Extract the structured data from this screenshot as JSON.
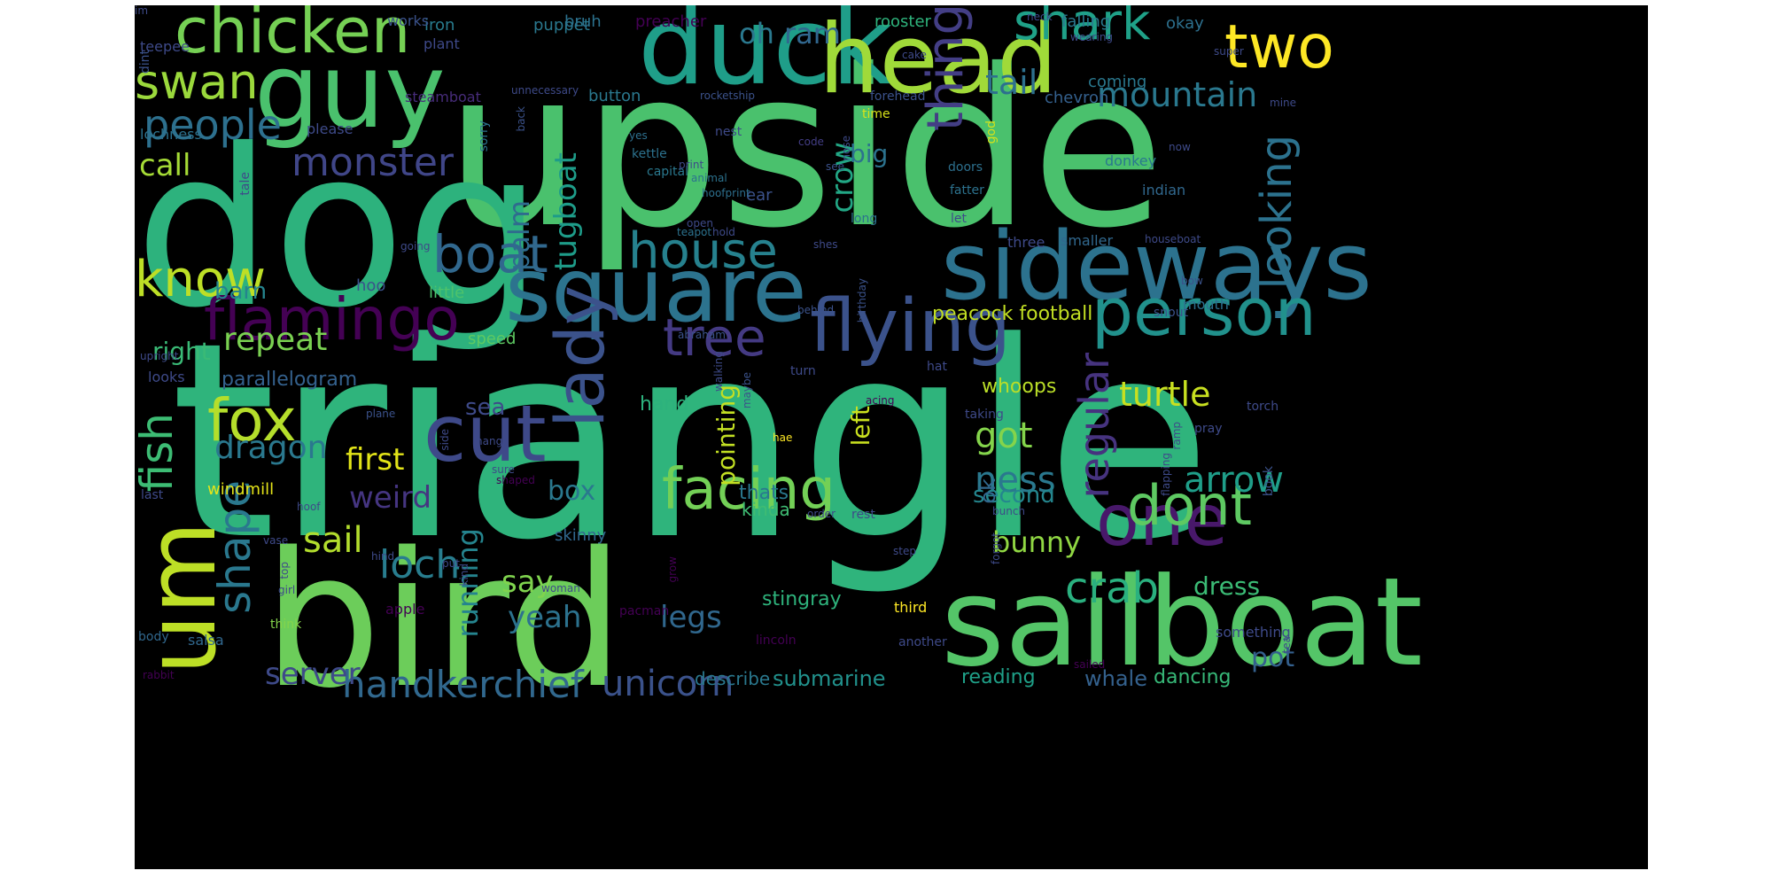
{
  "words": [
    {
      "text": "upside",
      "color": "#4ac16d",
      "bold": false
    },
    {
      "text": "triangle",
      "color": "#2fb47c",
      "bold": false
    },
    {
      "text": "dog",
      "color": "#2db27d",
      "bold": false
    },
    {
      "text": "bird",
      "color": "#6ccd5a",
      "bold": false
    },
    {
      "text": "duck",
      "color": "#1f9e89",
      "bold": false
    },
    {
      "text": "head",
      "color": "#a0da39",
      "bold": false
    },
    {
      "text": "sideways",
      "color": "#2c728e",
      "bold": false
    },
    {
      "text": "sailboat",
      "color": "#54c568",
      "bold": false
    },
    {
      "text": "guy",
      "color": "#4ac16d",
      "bold": false
    },
    {
      "text": "square",
      "color": "#2c738e",
      "bold": false
    },
    {
      "text": "um",
      "color": "#bddf26",
      "bold": false
    },
    {
      "text": "chicken",
      "color": "#75d054",
      "bold": false
    },
    {
      "text": "flamingo",
      "color": "#440154",
      "bold": false
    },
    {
      "text": "flying",
      "color": "#3b528b",
      "bold": false
    },
    {
      "text": "person",
      "color": "#21918c",
      "bold": false
    },
    {
      "text": "one",
      "color": "#48186a",
      "bold": false
    },
    {
      "text": "cut",
      "color": "#3e4989",
      "bold": false
    },
    {
      "text": "facing",
      "color": "#73d056",
      "bold": false
    },
    {
      "text": "dont",
      "color": "#5ec962",
      "bold": false
    },
    {
      "text": "fox",
      "color": "#b5de2b",
      "bold": false
    },
    {
      "text": "two",
      "color": "#fde725",
      "bold": false
    },
    {
      "text": "shark",
      "color": "#1fa188",
      "bold": false
    },
    {
      "text": "swan",
      "color": "#9bd93c",
      "bold": false
    },
    {
      "text": "boat",
      "color": "#31688e",
      "bold": false
    },
    {
      "text": "house",
      "color": "#26818e",
      "bold": false
    },
    {
      "text": "tree",
      "color": "#443a83",
      "bold": false
    },
    {
      "text": "lady",
      "color": "#3b528b",
      "bold": false
    },
    {
      "text": "thing",
      "color": "#433e85",
      "bold": false
    },
    {
      "text": "know",
      "color": "#bddf26",
      "bold": false
    },
    {
      "text": "fish",
      "color": "#3dbc74",
      "bold": false
    },
    {
      "text": "shape",
      "color": "#2a788e",
      "bold": false
    },
    {
      "text": "crab",
      "color": "#2ab07f",
      "bold": false
    },
    {
      "text": "people",
      "color": "#2d708e",
      "bold": false
    },
    {
      "text": "monster",
      "color": "#404688",
      "bold": false
    },
    {
      "text": "looking",
      "color": "#2c728e",
      "bold": false
    },
    {
      "text": "turtle",
      "color": "#c8e020",
      "bold": false
    },
    {
      "text": "mountain",
      "color": "#2a788e",
      "bold": false
    },
    {
      "text": "handkerchief",
      "color": "#31688e",
      "bold": false
    },
    {
      "text": "unicorn",
      "color": "#3b528b",
      "bold": false
    },
    {
      "text": "loch",
      "color": "#287d8e",
      "bold": false
    },
    {
      "text": "sail",
      "color": "#b2dd2d",
      "bold": false
    },
    {
      "text": "dragon",
      "color": "#2a788e",
      "bold": false
    },
    {
      "text": "repeat",
      "color": "#7ad151",
      "bold": false
    },
    {
      "text": "ness",
      "color": "#2a788e",
      "bold": false
    },
    {
      "text": "regular",
      "color": "#46337f",
      "bold": false
    },
    {
      "text": "arrow",
      "color": "#1f9e89",
      "bold": false
    },
    {
      "text": "got",
      "color": "#84d44b",
      "bold": false
    },
    {
      "text": "tail",
      "color": "#2d708e",
      "bold": false
    },
    {
      "text": "call",
      "color": "#a5db36",
      "bold": false
    },
    {
      "text": "first",
      "color": "#e2e418",
      "bold": false
    },
    {
      "text": "weird",
      "color": "#453581",
      "bold": false
    },
    {
      "text": "legs",
      "color": "#30678d",
      "bold": false
    },
    {
      "text": "yeah",
      "color": "#2c728e",
      "bold": false
    },
    {
      "text": "say",
      "color": "#7fd34e",
      "bold": false
    },
    {
      "text": "server",
      "color": "#3e4a89",
      "bold": false
    },
    {
      "text": "crow",
      "color": "#22a785",
      "bold": false
    },
    {
      "text": "palm",
      "color": "#2f6b8e",
      "bold": false
    },
    {
      "text": "tugboat",
      "color": "#1e9c89",
      "bold": false
    },
    {
      "text": "oh",
      "color": "#2a788e",
      "bold": false
    },
    {
      "text": "ram",
      "color": "#31678e",
      "bold": false
    },
    {
      "text": "running",
      "color": "#25848e",
      "bold": false
    },
    {
      "text": "bunny",
      "color": "#90d743",
      "bold": false
    },
    {
      "text": "dress",
      "color": "#3bbb75",
      "bold": false
    },
    {
      "text": "pot",
      "color": "#34608d",
      "bold": false
    },
    {
      "text": "box",
      "color": "#2a788e",
      "bold": false
    },
    {
      "text": "big",
      "color": "#2c728e",
      "bold": false
    },
    {
      "text": "pointing",
      "color": "#c2df23",
      "bold": false
    },
    {
      "text": "left",
      "color": "#cae11f",
      "bold": false
    },
    {
      "text": "sea",
      "color": "#3e4a89",
      "bold": false
    },
    {
      "text": "right",
      "color": "#3aba76",
      "bold": false
    },
    {
      "text": "parallelogram",
      "color": "#34618d",
      "bold": false
    },
    {
      "text": "barn",
      "color": "#25848e",
      "bold": false
    },
    {
      "text": "second",
      "color": "#24868e",
      "bold": false
    },
    {
      "text": "ok",
      "color": "#31688e",
      "bold": false
    },
    {
      "text": "submarine",
      "color": "#21918c",
      "bold": false
    },
    {
      "text": "whale",
      "color": "#34618d",
      "bold": false
    },
    {
      "text": "dancing",
      "color": "#37b878",
      "bold": false
    },
    {
      "text": "reading",
      "color": "#1fa088",
      "bold": false
    },
    {
      "text": "stingray",
      "color": "#2eb37c",
      "bold": false
    },
    {
      "text": "describe",
      "color": "#2a788e",
      "bold": false
    },
    {
      "text": "peacock football",
      "color": "#c2df23",
      "bold": false
    },
    {
      "text": "whoops",
      "color": "#bade28",
      "bold": false
    },
    {
      "text": "hand",
      "color": "#2db27d",
      "bold": false
    },
    {
      "text": "thats",
      "color": "#2a788e",
      "bold": false
    },
    {
      "text": "kinda",
      "color": "#3fbc73",
      "bold": false
    },
    {
      "text": "windmill",
      "color": "#e5e419",
      "bold": false
    },
    {
      "text": "salsa",
      "color": "#31688e",
      "bold": false
    },
    {
      "text": "skinny",
      "color": "#31688e",
      "bold": false
    },
    {
      "text": "speed",
      "color": "#5ec962",
      "bold": false
    },
    {
      "text": "little",
      "color": "#4ec36b",
      "bold": false
    },
    {
      "text": "hoo",
      "color": "#3b528b",
      "bold": false
    },
    {
      "text": "ear",
      "color": "#3b528b",
      "bold": false
    },
    {
      "text": "iron",
      "color": "#287c8e",
      "bold": false
    },
    {
      "text": "puppet",
      "color": "#2a788e",
      "bold": false
    },
    {
      "text": "bruh",
      "color": "#2c728e",
      "bold": false
    },
    {
      "text": "preacher",
      "color": "#440154",
      "bold": false
    },
    {
      "text": "rooster",
      "color": "#2eb37c",
      "bold": false
    },
    {
      "text": "falling",
      "color": "#2a788e",
      "bold": false
    },
    {
      "text": "okay",
      "color": "#2d708e",
      "bold": false
    },
    {
      "text": "coming",
      "color": "#2a788e",
      "bold": false
    },
    {
      "text": "chevron",
      "color": "#34608d",
      "bold": false
    },
    {
      "text": "button",
      "color": "#2a788e",
      "bold": false
    },
    {
      "text": "works",
      "color": "#3b528b",
      "bold": false
    },
    {
      "text": "plant",
      "color": "#3e4989",
      "bold": false
    },
    {
      "text": "teepee",
      "color": "#3e4a89",
      "bold": false
    },
    {
      "text": "dint",
      "color": "#3b528b",
      "bold": false
    },
    {
      "text": "steamboat",
      "color": "#472c7a",
      "bold": false
    },
    {
      "text": "unnecessary",
      "color": "#3e4a89",
      "bold": false
    },
    {
      "text": "rocketship",
      "color": "#3b528b",
      "bold": false
    },
    {
      "text": "forehead",
      "color": "#3b528b",
      "bold": false
    },
    {
      "text": "lochness",
      "color": "#2c728e",
      "bold": false
    },
    {
      "text": "please",
      "color": "#3e4a89",
      "bold": false
    },
    {
      "text": "sorry",
      "color": "#2c728e",
      "bold": false
    },
    {
      "text": "back",
      "color": "#3b528b",
      "bold": false
    },
    {
      "text": "nest",
      "color": "#3e4a89",
      "bold": false
    },
    {
      "text": "code",
      "color": "#433e85",
      "bold": false
    },
    {
      "text": "nose",
      "color": "#3e4a89",
      "bold": false
    },
    {
      "text": "time",
      "color": "#d8e219",
      "bold": false
    },
    {
      "text": "god",
      "color": "#d5e21a",
      "bold": false
    },
    {
      "text": "donkey",
      "color": "#2a788e",
      "bold": false
    },
    {
      "text": "now",
      "color": "#3e4a89",
      "bold": false
    },
    {
      "text": "yes",
      "color": "#2d708e",
      "bold": false
    },
    {
      "text": "kettle",
      "color": "#2c728e",
      "bold": false
    },
    {
      "text": "capital",
      "color": "#2a788e",
      "bold": false
    },
    {
      "text": "print",
      "color": "#3e4a89",
      "bold": false
    },
    {
      "text": "animal",
      "color": "#2c728e",
      "bold": false
    },
    {
      "text": "hoofprint",
      "color": "#2d708e",
      "bold": false
    },
    {
      "text": "see",
      "color": "#3b528b",
      "bold": false
    },
    {
      "text": "doors",
      "color": "#2d708e",
      "bold": false
    },
    {
      "text": "fatter",
      "color": "#2c728e",
      "bold": false
    },
    {
      "text": "long",
      "color": "#2c728e",
      "bold": false
    },
    {
      "text": "indian",
      "color": "#31688e",
      "bold": false
    },
    {
      "text": "tale",
      "color": "#3e4a89",
      "bold": false
    },
    {
      "text": "teapot",
      "color": "#2c728e",
      "bold": false
    },
    {
      "text": "open",
      "color": "#3e4a89",
      "bold": false
    },
    {
      "text": "hold",
      "color": "#3e4a89",
      "bold": false
    },
    {
      "text": "birthday",
      "color": "#3b528b",
      "bold": false
    },
    {
      "text": "let",
      "color": "#3e4a89",
      "bold": false
    },
    {
      "text": "three",
      "color": "#3e4a89",
      "bold": false
    },
    {
      "text": "smaller",
      "color": "#31688e",
      "bold": false
    },
    {
      "text": "houseboat",
      "color": "#3e4a89",
      "bold": false
    },
    {
      "text": "going",
      "color": "#3e4a89",
      "bold": false
    },
    {
      "text": "shes",
      "color": "#3e4a89",
      "bold": false
    },
    {
      "text": "bow",
      "color": "#3b528b",
      "bold": false
    },
    {
      "text": "behind",
      "color": "#3b528b",
      "bold": false
    },
    {
      "text": "snout",
      "color": "#3b528b",
      "bold": false
    },
    {
      "text": "mouth",
      "color": "#2d708e",
      "bold": false
    },
    {
      "text": "abraham",
      "color": "#3b528b",
      "bold": false
    },
    {
      "text": "walking",
      "color": "#3e4a89",
      "bold": false
    },
    {
      "text": "upright",
      "color": "#3e4a89",
      "bold": false
    },
    {
      "text": "maybe",
      "color": "#3b528b",
      "bold": false
    },
    {
      "text": "turn",
      "color": "#3e4a89",
      "bold": false
    },
    {
      "text": "hat",
      "color": "#3e4a89",
      "bold": false
    },
    {
      "text": "looks",
      "color": "#3e4a89",
      "bold": false
    },
    {
      "text": "plane",
      "color": "#3b528b",
      "bold": false
    },
    {
      "text": "acing",
      "color": "#440154",
      "bold": false
    },
    {
      "text": "taking",
      "color": "#3e4a89",
      "bold": false
    },
    {
      "text": "torch",
      "color": "#3e4a89",
      "bold": false
    },
    {
      "text": "pray",
      "color": "#3e4a89",
      "bold": false
    },
    {
      "text": "side",
      "color": "#3e4a89",
      "bold": false
    },
    {
      "text": "hang",
      "color": "#3e4a89",
      "bold": false
    },
    {
      "text": "hae",
      "color": "#fde725",
      "bold": false
    },
    {
      "text": "sure",
      "color": "#3e4a89",
      "bold": false
    },
    {
      "text": "shaped",
      "color": "#440154",
      "bold": false
    },
    {
      "text": "ramp",
      "color": "#3e4a89",
      "bold": false
    },
    {
      "text": "flapping",
      "color": "#3e4a89",
      "bold": false
    },
    {
      "text": "book",
      "color": "#3b528b",
      "bold": false
    },
    {
      "text": "last",
      "color": "#3e4a89",
      "bold": false
    },
    {
      "text": "hoof",
      "color": "#3e4a89",
      "bold": false
    },
    {
      "text": "rest",
      "color": "#3e4a89",
      "bold": false
    },
    {
      "text": "order",
      "color": "#3e4a89",
      "bold": false
    },
    {
      "text": "bunch",
      "color": "#3e4a89",
      "bold": false
    },
    {
      "text": "vase",
      "color": "#3e4a89",
      "bold": false
    },
    {
      "text": "top",
      "color": "#3e4a89",
      "bold": false
    },
    {
      "text": "put",
      "color": "#3e4a89",
      "bold": false
    },
    {
      "text": "hind",
      "color": "#3e4a89",
      "bold": false
    },
    {
      "text": "woman",
      "color": "#3e4a89",
      "bold": false
    },
    {
      "text": "grow",
      "color": "#440154",
      "bold": false
    },
    {
      "text": "step",
      "color": "#3e4a89",
      "bold": false
    },
    {
      "text": "forgot",
      "color": "#3e4a89",
      "bold": false
    },
    {
      "text": "girl",
      "color": "#3e4a89",
      "bold": false
    },
    {
      "text": "apple",
      "color": "#440154",
      "bold": false
    },
    {
      "text": "pacman",
      "color": "#440154",
      "bold": false
    },
    {
      "text": "third",
      "color": "#fde725",
      "bold": false
    },
    {
      "text": "another",
      "color": "#3e4a89",
      "bold": false
    },
    {
      "text": "sailed",
      "color": "#440154",
      "bold": false
    },
    {
      "text": "something",
      "color": "#3e4a89",
      "bold": false
    },
    {
      "text": "think",
      "color": "#84d44b",
      "bold": false
    },
    {
      "text": "body",
      "color": "#31688e",
      "bold": false
    },
    {
      "text": "rabbit",
      "color": "#440154",
      "bold": false
    },
    {
      "text": "lincoln",
      "color": "#440154",
      "bold": false
    },
    {
      "text": "tea",
      "color": "#3e4a89",
      "bold": false
    },
    {
      "text": "wearing",
      "color": "#3e4a89",
      "bold": false
    },
    {
      "text": "cake",
      "color": "#3e4a89",
      "bold": false
    },
    {
      "text": "neck",
      "color": "#3e4a89",
      "bold": false
    },
    {
      "text": "super",
      "color": "#3e4a89",
      "bold": false
    },
    {
      "text": "mine",
      "color": "#3e4a89",
      "bold": false
    },
    {
      "text": "kind",
      "color": "#3e4a89",
      "bold": false
    },
    {
      "text": "im",
      "color": "#3e4a89",
      "bold": false
    }
  ]
}
